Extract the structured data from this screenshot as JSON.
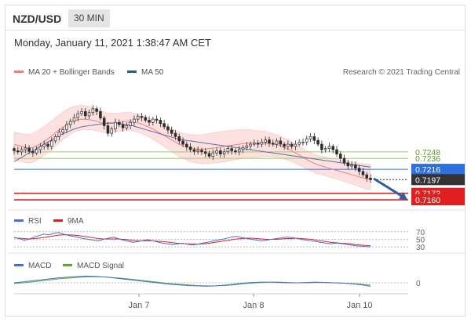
{
  "header": {
    "symbol": "NZD/USD",
    "timeframe": "30 MIN",
    "datetime": "Monday, January 11, 2021 1:38:47 AM CET"
  },
  "legend": {
    "bollinger_label": "MA 20 + Bollinger Bands",
    "ma50_label": "MA 50",
    "credit": "Research © 2021 Trading Central",
    "rsi_label": "RSI",
    "rsi_ma_label": "9MA",
    "macd_label": "MACD",
    "macd_signal_label": "MACD Signal"
  },
  "colors": {
    "ma20": "#f08080",
    "band_fill": "#fde0e0",
    "ma50": "#5b6fa8",
    "support_green": "#9ccc65",
    "pivot_blue": "#2f6fe0",
    "target_red": "#e02020",
    "candle_up": "#2d2d2d",
    "candle_down": "#2d2d2d",
    "rsi": "#4a6fd8",
    "rsi_ma": "#e02020",
    "macd": "#4a6fd8",
    "macd_signal": "#59a933",
    "arrow": "#2f5f9f"
  },
  "chart_data": [
    {
      "type": "candlestick",
      "title": "NZD/USD 30 MIN",
      "x_ticks": [
        "Jan 7",
        "Jan 8",
        "Jan 10"
      ],
      "levels": [
        {
          "name": "resistance-2",
          "value": 0.7248,
          "label": "0.7248",
          "style": "green"
        },
        {
          "name": "resistance-1",
          "value": 0.7236,
          "label": "0.7236",
          "style": "green"
        },
        {
          "name": "pivot",
          "value": 0.7216,
          "label": "0.7216",
          "style": "blue"
        },
        {
          "name": "last-price",
          "value": 0.7197,
          "label": "0.7197",
          "style": "black"
        },
        {
          "name": "support-1",
          "value": 0.7172,
          "label": "0.7172",
          "style": "red"
        },
        {
          "name": "support-2",
          "value": 0.716,
          "label": "0.7160",
          "style": "red"
        }
      ],
      "ylim": [
        0.715,
        0.738
      ],
      "closes": [
        0.725,
        0.7248,
        0.7252,
        0.7255,
        0.7249,
        0.7246,
        0.7252,
        0.7258,
        0.7262,
        0.7258,
        0.7268,
        0.7276,
        0.7284,
        0.7289,
        0.7298,
        0.7304,
        0.7311,
        0.7318,
        0.7322,
        0.7314,
        0.732,
        0.7327,
        0.7322,
        0.731,
        0.7296,
        0.7282,
        0.729,
        0.7302,
        0.7298,
        0.7292,
        0.7296,
        0.7302,
        0.7308,
        0.7313,
        0.7311,
        0.7306,
        0.7302,
        0.7308,
        0.7306,
        0.73,
        0.7294,
        0.7288,
        0.7282,
        0.7276,
        0.7268,
        0.7262,
        0.7257,
        0.7252,
        0.7249,
        0.7251,
        0.7248,
        0.7245,
        0.724,
        0.7246,
        0.725,
        0.7244,
        0.7248,
        0.7254,
        0.725,
        0.7248,
        0.7252,
        0.7256,
        0.7259,
        0.7262,
        0.7264,
        0.7262,
        0.7266,
        0.727,
        0.7264,
        0.7262,
        0.7268,
        0.7262,
        0.7258,
        0.7262,
        0.7258,
        0.7262,
        0.7266,
        0.7266,
        0.7272,
        0.7276,
        0.7269,
        0.7262,
        0.7252,
        0.7254,
        0.7258,
        0.7252,
        0.7244,
        0.7236,
        0.7228,
        0.7222,
        0.7224,
        0.7218,
        0.7212,
        0.7206,
        0.72,
        0.7197
      ],
      "ma20": [
        0.7262,
        0.726,
        0.7258,
        0.7256,
        0.7255,
        0.7256,
        0.7259,
        0.7263,
        0.7267,
        0.7272,
        0.7277,
        0.7283,
        0.7288,
        0.7293,
        0.7298,
        0.7302,
        0.7305,
        0.7307,
        0.7308,
        0.7308,
        0.7307,
        0.7306,
        0.7304,
        0.7302,
        0.73,
        0.73,
        0.73,
        0.7301,
        0.7302,
        0.7303,
        0.7304,
        0.7304,
        0.7303,
        0.7301,
        0.7299,
        0.7296,
        0.7293,
        0.729,
        0.7286,
        0.7282,
        0.7278,
        0.7274,
        0.727,
        0.7266,
        0.7262,
        0.7259,
        0.7257,
        0.7255,
        0.7254,
        0.7253,
        0.7253,
        0.7253,
        0.7254,
        0.7255,
        0.7256,
        0.7257,
        0.7258,
        0.7259,
        0.726,
        0.7261,
        0.7262,
        0.7263,
        0.7264,
        0.7264,
        0.7264,
        0.7264,
        0.7264,
        0.7264,
        0.7263,
        0.7262,
        0.7261,
        0.7259,
        0.7256,
        0.7253,
        0.725,
        0.7246,
        0.7242,
        0.7238,
        0.7234,
        0.723,
        0.7227,
        0.7224,
        0.7222,
        0.722,
        0.7218,
        0.7216,
        0.7214,
        0.7212,
        0.721,
        0.7208,
        0.7206,
        0.7204,
        0.7202,
        0.72,
        0.7199,
        0.7198
      ],
      "ma50": [
        0.723,
        0.7234,
        0.7238,
        0.7242,
        0.7246,
        0.725,
        0.7254,
        0.7258,
        0.7262,
        0.7266,
        0.727,
        0.7274,
        0.7278,
        0.7281,
        0.7284,
        0.7287,
        0.729,
        0.7292,
        0.7294,
        0.7295,
        0.7296,
        0.7297,
        0.7298,
        0.7299,
        0.73,
        0.7301,
        0.7301,
        0.7301,
        0.73,
        0.7299,
        0.7298,
        0.7297,
        0.7295,
        0.7293,
        0.7291,
        0.7289,
        0.7287,
        0.7285,
        0.7283,
        0.7281,
        0.7279,
        0.7277,
        0.7275,
        0.7273,
        0.7271,
        0.727,
        0.7269,
        0.7268,
        0.7267,
        0.7266,
        0.7265,
        0.7264,
        0.7263,
        0.7262,
        0.7261,
        0.726,
        0.7259,
        0.7258,
        0.7257,
        0.7256,
        0.7255,
        0.7254,
        0.7253,
        0.7252,
        0.7251,
        0.725,
        0.7249,
        0.7248,
        0.7247,
        0.7246,
        0.7245,
        0.7244,
        0.7243,
        0.7242,
        0.7241,
        0.724,
        0.7239,
        0.7238,
        0.7237,
        0.7236,
        0.7235,
        0.7234,
        0.7233,
        0.7232,
        0.7231,
        0.723,
        0.7229,
        0.7228,
        0.7227,
        0.7226,
        0.7225,
        0.7224,
        0.7223,
        0.7222,
        0.7221,
        0.722
      ]
    },
    {
      "type": "line",
      "title": "RSI",
      "levels": [
        70,
        50,
        30
      ],
      "ylim": [
        20,
        80
      ],
      "series": [
        {
          "name": "RSI",
          "values": [
            55,
            52,
            48,
            50,
            56,
            60,
            64,
            62,
            66,
            68,
            64,
            60,
            58,
            55,
            52,
            50,
            48,
            46,
            50,
            53,
            56,
            52,
            48,
            45,
            42,
            44,
            47,
            49,
            46,
            43,
            40,
            38,
            36,
            38,
            40,
            37,
            35,
            37,
            40,
            42,
            45,
            48,
            50,
            53,
            56,
            58,
            55,
            52,
            50,
            48,
            46,
            48,
            50,
            52,
            54,
            56,
            55,
            53,
            50,
            48,
            46,
            44,
            42,
            40,
            38,
            40,
            39,
            37,
            35,
            33,
            32,
            31,
            30
          ]
        },
        {
          "name": "9MA",
          "values": [
            54,
            53,
            52,
            51,
            52,
            53,
            55,
            57,
            59,
            61,
            62,
            62,
            61,
            60,
            58,
            56,
            54,
            52,
            51,
            51,
            51,
            51,
            50,
            49,
            47,
            46,
            46,
            46,
            46,
            45,
            44,
            43,
            41,
            40,
            39,
            38,
            38,
            37,
            38,
            39,
            41,
            43,
            45,
            47,
            49,
            51,
            52,
            53,
            53,
            52,
            51,
            50,
            50,
            50,
            51,
            52,
            52,
            53,
            52,
            51,
            50,
            48,
            46,
            44,
            42,
            41,
            40,
            39,
            38,
            36,
            35,
            34,
            33
          ]
        }
      ]
    },
    {
      "type": "line",
      "title": "MACD",
      "levels": [
        0
      ],
      "ylim": [
        -0.003,
        0.003
      ],
      "series": [
        {
          "name": "MACD",
          "values": [
            0.0,
            0.0003,
            0.0006,
            0.0009,
            0.0012,
            0.0015,
            0.0017,
            0.0019,
            0.002,
            0.0019,
            0.0017,
            0.0014,
            0.0011,
            0.0008,
            0.0005,
            0.0002,
            -0.0001,
            -0.0004,
            -0.0006,
            -0.0008,
            -0.0009,
            -0.001,
            -0.0009,
            -0.0007,
            -0.0004,
            -0.0001,
            0.0001,
            0.0002,
            0.0002,
            0.0001,
            0.0,
            0.0,
            0.0001,
            0.0002,
            0.0001,
            0.0,
            -0.0001,
            -0.0003,
            -0.0006,
            -0.001
          ]
        },
        {
          "name": "MACD Signal",
          "values": [
            -0.0002,
            0.0,
            0.0003,
            0.0006,
            0.0009,
            0.0012,
            0.0014,
            0.0016,
            0.0018,
            0.0018,
            0.0017,
            0.0015,
            0.0013,
            0.001,
            0.0007,
            0.0004,
            0.0001,
            -0.0002,
            -0.0004,
            -0.0006,
            -0.0008,
            -0.0009,
            -0.0009,
            -0.0008,
            -0.0006,
            -0.0003,
            -0.0001,
            0.0001,
            0.0002,
            0.0002,
            0.0001,
            0.0,
            0.0,
            0.0001,
            0.0001,
            0.0,
            -0.0001,
            -0.0002,
            -0.0004,
            -0.0007
          ]
        }
      ]
    }
  ]
}
